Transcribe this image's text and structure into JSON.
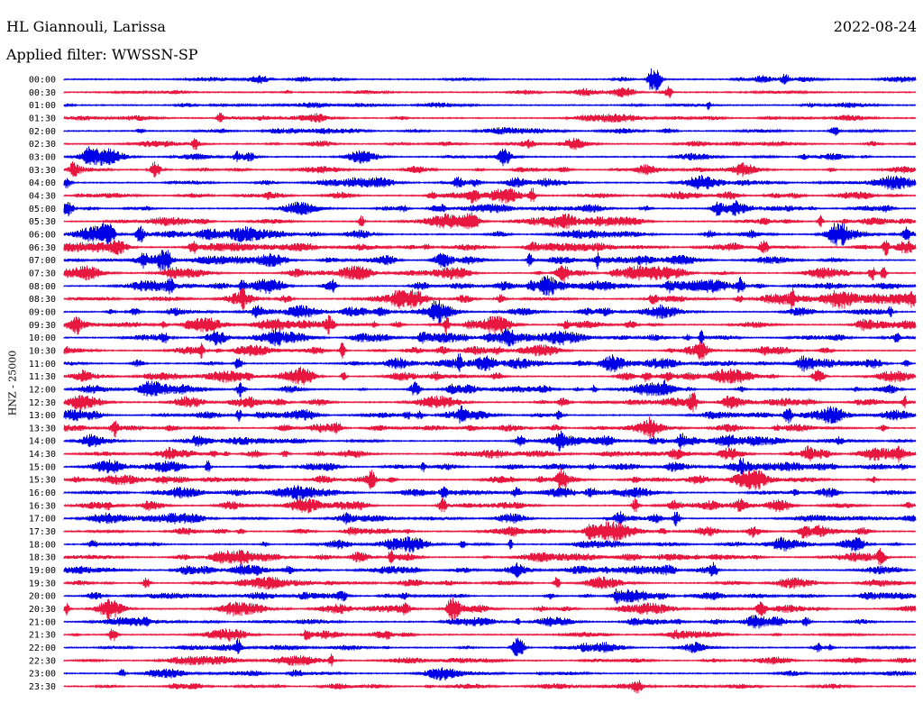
{
  "header": {
    "station": "HL Giannouli, Larissa",
    "date": "2022-08-24",
    "filter": "Applied filter: WWSSN-SP"
  },
  "chart_data": {
    "type": "line",
    "title": "HL Giannouli, Larissa",
    "ylabel": "HNZ - 25000",
    "xlabel": "",
    "grid": false,
    "trace_colors": [
      "#0000e6",
      "#e8173f"
    ],
    "rows": [
      "00:00",
      "00:30",
      "01:00",
      "01:30",
      "02:00",
      "02:30",
      "03:00",
      "03:30",
      "04:00",
      "04:30",
      "05:00",
      "05:30",
      "06:00",
      "06:30",
      "07:00",
      "07:30",
      "08:00",
      "08:30",
      "09:00",
      "09:30",
      "10:00",
      "10:30",
      "11:00",
      "11:30",
      "12:00",
      "12:30",
      "13:00",
      "13:30",
      "14:00",
      "14:30",
      "15:00",
      "15:30",
      "16:00",
      "16:30",
      "17:00",
      "17:30",
      "18:00",
      "18:30",
      "19:00",
      "19:30",
      "20:00",
      "20:30",
      "21:00",
      "21:30",
      "22:00",
      "22:30",
      "23:00",
      "23:30"
    ],
    "activity": [
      0.25,
      0.2,
      0.22,
      0.28,
      0.3,
      0.35,
      0.45,
      0.5,
      0.55,
      0.6,
      0.62,
      0.65,
      0.7,
      0.68,
      0.75,
      0.72,
      0.74,
      0.7,
      0.72,
      0.7,
      0.7,
      0.68,
      0.68,
      0.66,
      0.66,
      0.64,
      0.64,
      0.62,
      0.64,
      0.62,
      0.64,
      0.62,
      0.62,
      0.6,
      0.62,
      0.6,
      0.6,
      0.6,
      0.6,
      0.58,
      0.58,
      0.55,
      0.5,
      0.4,
      0.45,
      0.35,
      0.35,
      0.3
    ],
    "events": [
      {
        "row": 0,
        "minute": 20.8,
        "peak": 2.4
      },
      {
        "row": 41,
        "minute": 13.7,
        "peak": 1.6
      },
      {
        "row": 44,
        "minute": 16.0,
        "peak": 1.6
      },
      {
        "row": 6,
        "minute": 15.5,
        "peak": 1.0
      },
      {
        "row": 12,
        "minute": 1.5,
        "peak": 1.2
      },
      {
        "row": 14,
        "minute": 3.5,
        "peak": 1.4
      },
      {
        "row": 16,
        "minute": 17.0,
        "peak": 1.2
      }
    ]
  }
}
